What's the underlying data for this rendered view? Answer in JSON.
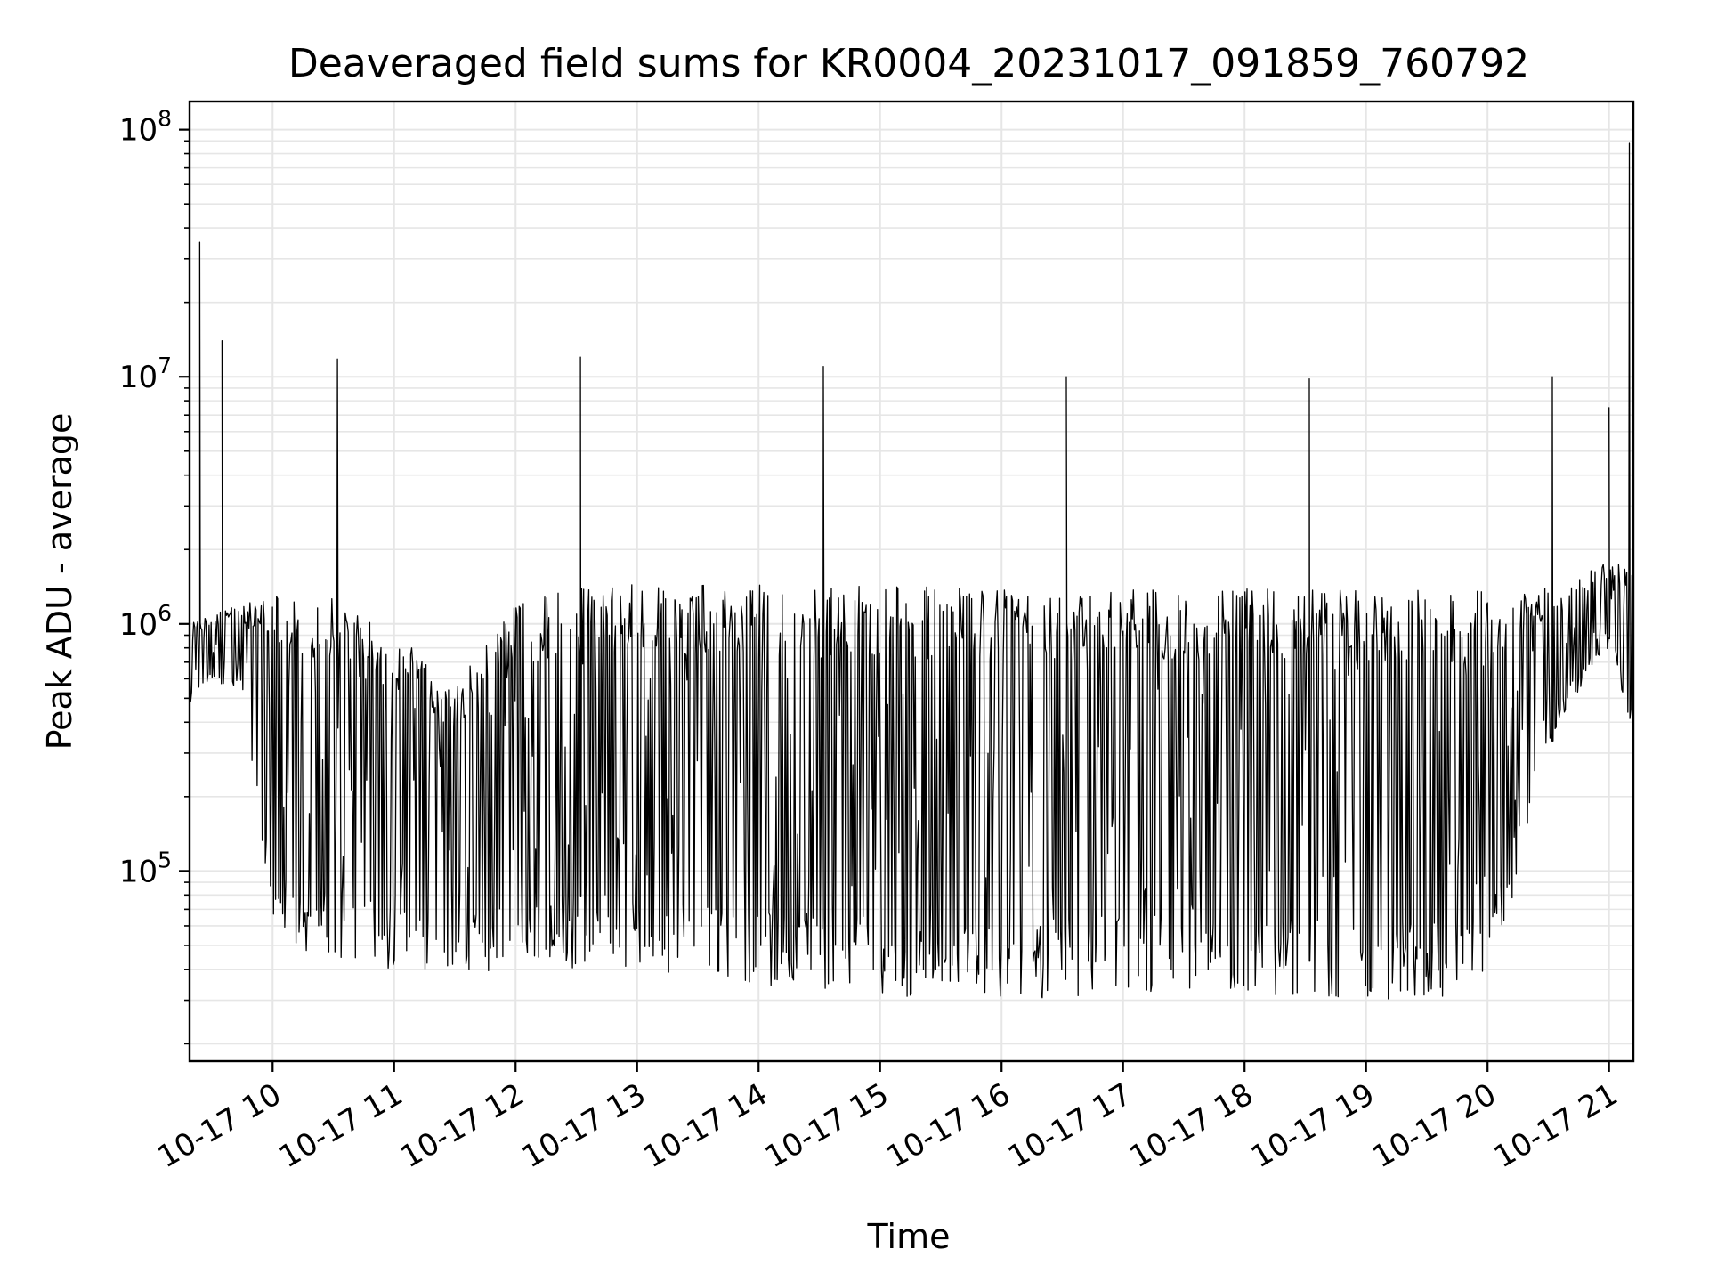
{
  "chart_data": {
    "type": "line",
    "title": "Deaveraged field sums for KR0004_20231017_091859_760792",
    "xlabel": "Time",
    "ylabel": "Peak ADU - average",
    "yscale": "log",
    "ylim": [
      17000,
      130000000
    ],
    "xlim": [
      "2023-10-17 09:19",
      "2023-10-17 21:12"
    ],
    "grid": true,
    "line_color": "#000000",
    "grid_color": "#e6e6e6",
    "x_ticks": [
      {
        "label": "10-17 10",
        "t": "2023-10-17 10:00"
      },
      {
        "label": "10-17 11",
        "t": "2023-10-17 11:00"
      },
      {
        "label": "10-17 12",
        "t": "2023-10-17 12:00"
      },
      {
        "label": "10-17 13",
        "t": "2023-10-17 13:00"
      },
      {
        "label": "10-17 14",
        "t": "2023-10-17 14:00"
      },
      {
        "label": "10-17 15",
        "t": "2023-10-17 15:00"
      },
      {
        "label": "10-17 16",
        "t": "2023-10-17 16:00"
      },
      {
        "label": "10-17 17",
        "t": "2023-10-17 17:00"
      },
      {
        "label": "10-17 18",
        "t": "2023-10-17 18:00"
      },
      {
        "label": "10-17 19",
        "t": "2023-10-17 19:00"
      },
      {
        "label": "10-17 20",
        "t": "2023-10-17 20:00"
      },
      {
        "label": "10-17 21",
        "t": "2023-10-17 21:00"
      }
    ],
    "y_ticks": [
      {
        "base": "10",
        "exp": "5",
        "value": 100000
      },
      {
        "base": "10",
        "exp": "6",
        "value": 1000000
      },
      {
        "base": "10",
        "exp": "7",
        "value": 10000000
      },
      {
        "base": "10",
        "exp": "8",
        "value": 100000000
      }
    ],
    "spikes": [
      {
        "t": "2023-10-17 09:24",
        "value": 35000000
      },
      {
        "t": "2023-10-17 09:35",
        "value": 14000000
      },
      {
        "t": "2023-10-17 10:32",
        "value": 11800000
      },
      {
        "t": "2023-10-17 12:32",
        "value": 12000000
      },
      {
        "t": "2023-10-17 14:32",
        "value": 11000000
      },
      {
        "t": "2023-10-17 16:32",
        "value": 10000000
      },
      {
        "t": "2023-10-17 18:32",
        "value": 9800000
      },
      {
        "t": "2023-10-17 20:32",
        "value": 10000000
      },
      {
        "t": "2023-10-17 21:00",
        "value": 7500000
      },
      {
        "t": "2023-10-17 21:10",
        "value": 88000000
      }
    ],
    "envelope": [
      {
        "t": "2023-10-17 09:19",
        "upper": 1000000,
        "lower": 450000
      },
      {
        "t": "2023-10-17 09:30",
        "upper": 1100000,
        "lower": 600000
      },
      {
        "t": "2023-10-17 09:45",
        "upper": 1200000,
        "lower": 500000
      },
      {
        "t": "2023-10-17 10:00",
        "upper": 1400000,
        "lower": 50000
      },
      {
        "t": "2023-10-17 10:30",
        "upper": 1300000,
        "lower": 42000
      },
      {
        "t": "2023-10-17 11:00",
        "upper": 900000,
        "lower": 40000
      },
      {
        "t": "2023-10-17 11:30",
        "upper": 600000,
        "lower": 38000
      },
      {
        "t": "2023-10-17 12:00",
        "upper": 1200000,
        "lower": 40000
      },
      {
        "t": "2023-10-17 12:30",
        "upper": 1400000,
        "lower": 40000
      },
      {
        "t": "2023-10-17 13:00",
        "upper": 1450000,
        "lower": 38000
      },
      {
        "t": "2023-10-17 14:00",
        "upper": 1450000,
        "lower": 32000
      },
      {
        "t": "2023-10-17 15:00",
        "upper": 1450000,
        "lower": 30000
      },
      {
        "t": "2023-10-17 16:00",
        "upper": 1400000,
        "lower": 30000
      },
      {
        "t": "2023-10-17 17:00",
        "upper": 1400000,
        "lower": 32000
      },
      {
        "t": "2023-10-17 18:00",
        "upper": 1400000,
        "lower": 32000
      },
      {
        "t": "2023-10-17 19:00",
        "upper": 1400000,
        "lower": 30000
      },
      {
        "t": "2023-10-17 20:00",
        "upper": 1350000,
        "lower": 30000
      },
      {
        "t": "2023-10-17 20:35",
        "upper": 1400000,
        "lower": 400000
      },
      {
        "t": "2023-10-17 21:00",
        "upper": 1800000,
        "lower": 800000
      },
      {
        "t": "2023-10-17 21:12",
        "upper": 1700000,
        "lower": 350000
      }
    ]
  }
}
